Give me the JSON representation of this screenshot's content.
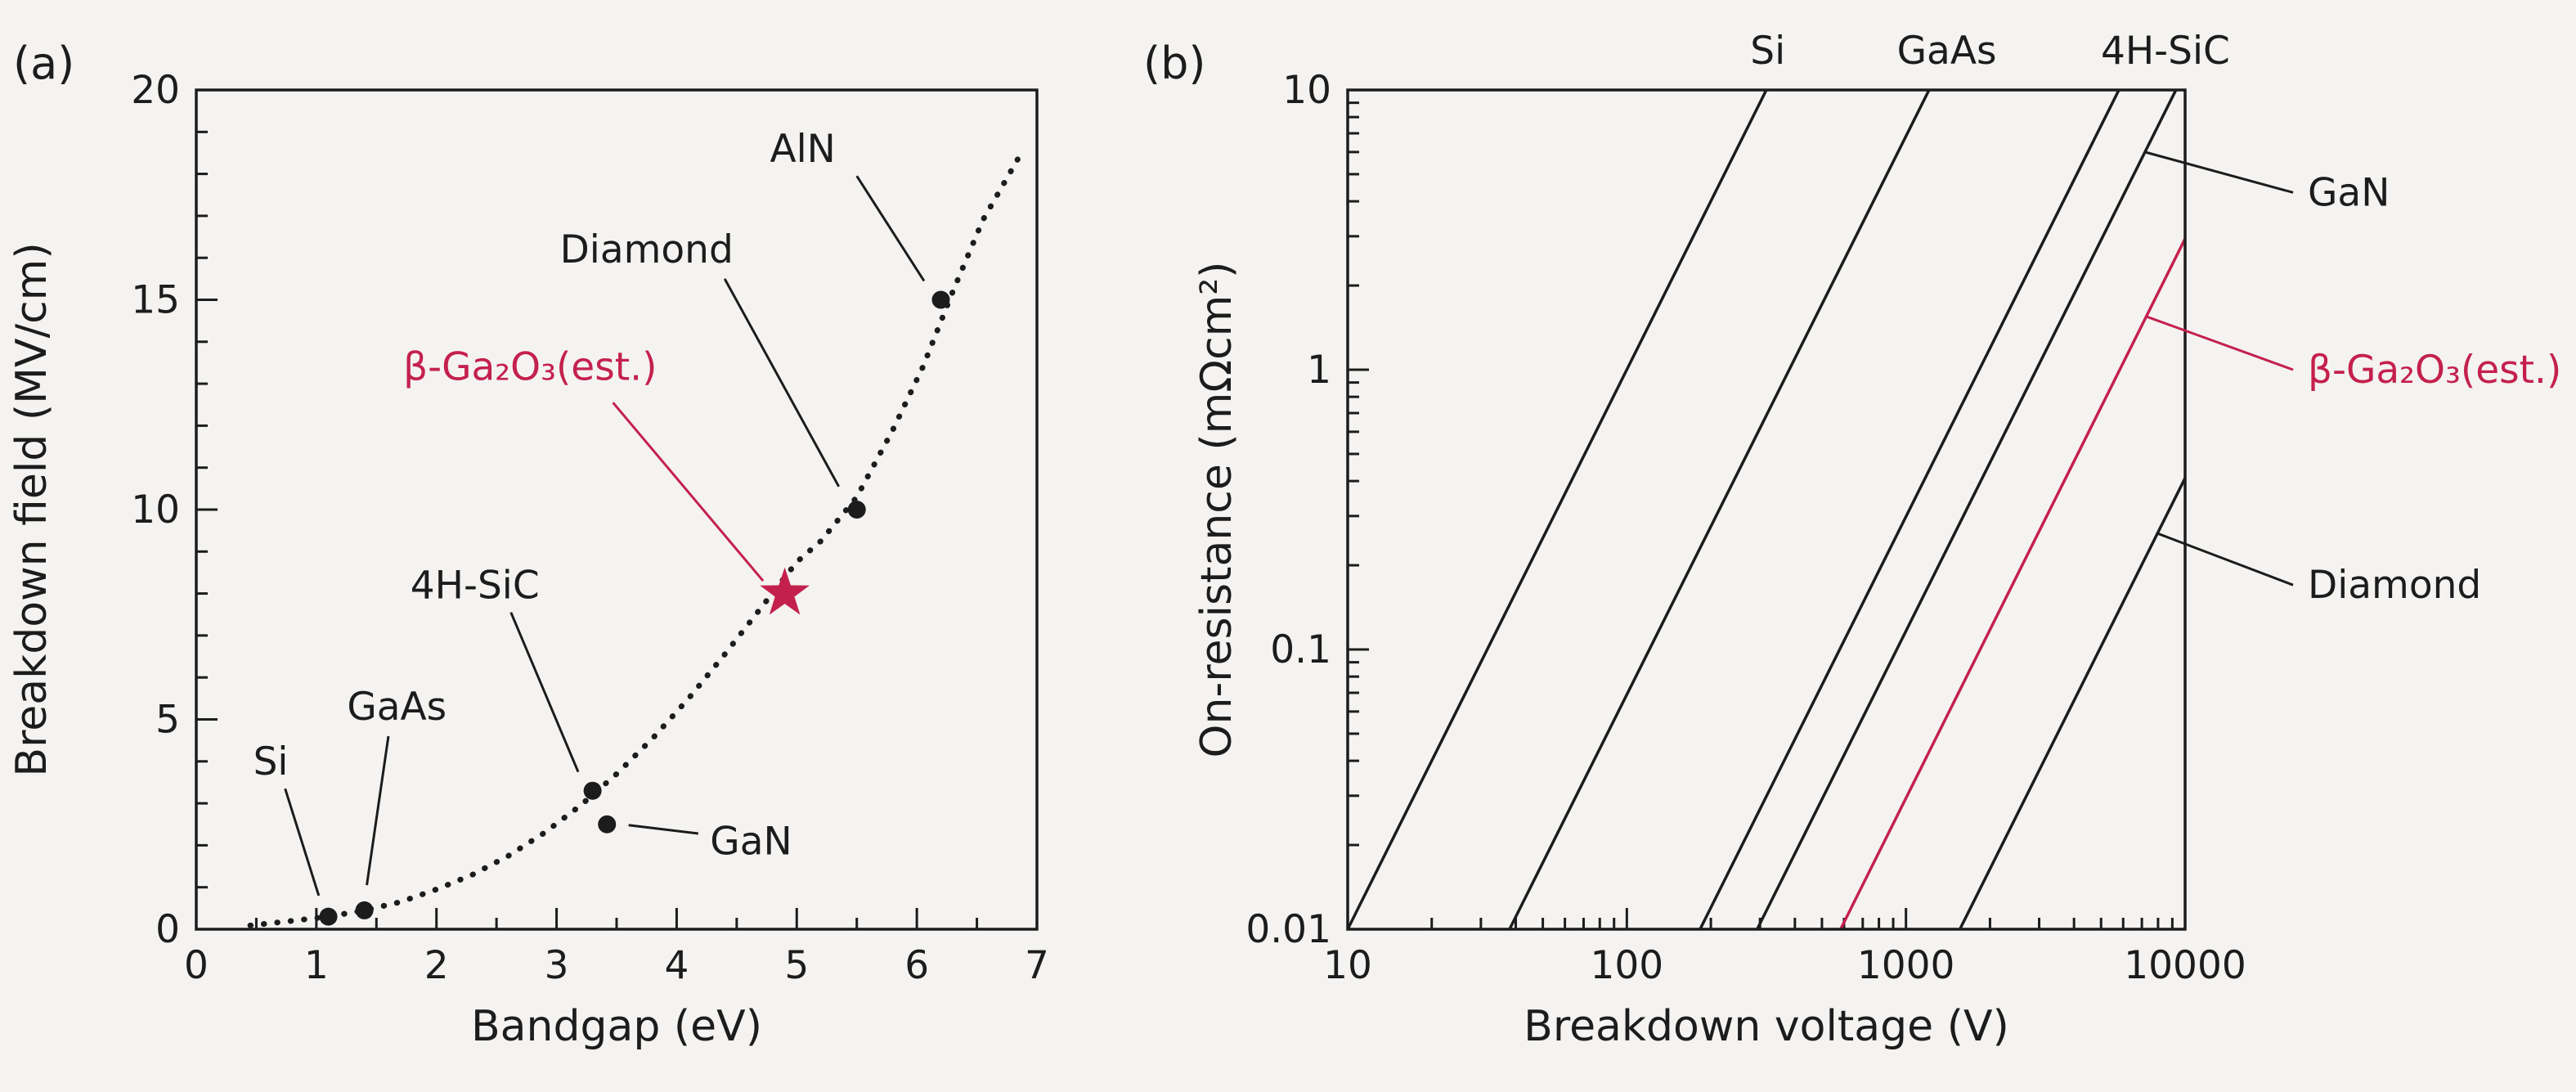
{
  "figure": {
    "background": "#f4f3f1",
    "ink": "#1c1c1c",
    "accent_red": "#c4204e"
  },
  "chart_data": [
    {
      "id": "a",
      "type": "scatter",
      "panel_label": "(a)",
      "xlabel": "Bandgap (eV)",
      "ylabel": "Breakdown field (MV/cm)",
      "xlim": [
        0,
        7
      ],
      "ylim": [
        0,
        20
      ],
      "xticks": [
        0,
        1,
        2,
        3,
        4,
        5,
        6,
        7
      ],
      "yticks": [
        0,
        5,
        10,
        15,
        20
      ],
      "x_minor_step": 0.5,
      "y_minor_step": 1,
      "grid": false,
      "points": [
        {
          "label": "Si",
          "x": 1.1,
          "y": 0.3,
          "marker": "dot",
          "color": "ink",
          "label_pos": [
            0.62,
            4.0
          ],
          "leader": [
            [
              0.74,
              3.35
            ],
            [
              1.02,
              0.8
            ]
          ]
        },
        {
          "label": "GaAs",
          "x": 1.4,
          "y": 0.45,
          "marker": "dot",
          "color": "ink",
          "label_pos": [
            1.67,
            5.3
          ],
          "leader": [
            [
              1.6,
              4.6
            ],
            [
              1.42,
              1.05
            ]
          ]
        },
        {
          "label": "4H-SiC",
          "x": 3.3,
          "y": 3.3,
          "marker": "dot",
          "color": "ink",
          "label_pos": [
            2.32,
            8.2
          ],
          "leader": [
            [
              2.62,
              7.55
            ],
            [
              3.18,
              3.75
            ]
          ]
        },
        {
          "label": "GaN",
          "x": 3.42,
          "y": 2.5,
          "marker": "dot",
          "color": "ink",
          "label_pos": [
            4.62,
            2.1
          ],
          "leader": [
            [
              4.18,
              2.28
            ],
            [
              3.6,
              2.48
            ]
          ]
        },
        {
          "label": "β-Ga₂O₃(est.)",
          "x": 4.9,
          "y": 8,
          "marker": "star",
          "color": "red",
          "label_pos": [
            2.78,
            13.4
          ],
          "leader": [
            [
              3.47,
              12.55
            ],
            [
              4.72,
              8.3
            ]
          ]
        },
        {
          "label": "Diamond",
          "x": 5.5,
          "y": 10,
          "marker": "dot",
          "color": "ink",
          "label_pos": [
            3.75,
            16.2
          ],
          "leader": [
            [
              4.4,
              15.5
            ],
            [
              5.35,
              10.55
            ]
          ]
        },
        {
          "label": "AlN",
          "x": 6.2,
          "y": 15,
          "marker": "dot",
          "color": "ink",
          "label_pos": [
            5.05,
            18.6
          ],
          "leader": [
            [
              5.5,
              17.95
            ],
            [
              6.06,
              15.45
            ]
          ]
        }
      ],
      "fit_curve": {
        "style": "dotted",
        "points": [
          [
            0.45,
            0.09
          ],
          [
            0.8,
            0.2
          ],
          [
            1.1,
            0.3
          ],
          [
            1.4,
            0.45
          ],
          [
            1.7,
            0.65
          ],
          [
            2.0,
            0.95
          ],
          [
            2.3,
            1.3
          ],
          [
            2.6,
            1.75
          ],
          [
            2.9,
            2.3
          ],
          [
            3.2,
            2.95
          ],
          [
            3.5,
            3.7
          ],
          [
            3.8,
            4.55
          ],
          [
            4.1,
            5.5
          ],
          [
            4.4,
            6.55
          ],
          [
            4.7,
            7.65
          ],
          [
            5.0,
            8.75
          ],
          [
            5.2,
            9.25
          ],
          [
            5.5,
            10.3
          ],
          [
            5.8,
            11.9
          ],
          [
            6.05,
            13.4
          ],
          [
            6.3,
            15.2
          ],
          [
            6.55,
            16.9
          ],
          [
            6.85,
            18.4
          ]
        ]
      }
    },
    {
      "id": "b",
      "type": "line",
      "panel_label": "(b)",
      "xlabel": "Breakdown voltage (V)",
      "ylabel": "On-resistance (mΩcm²)",
      "xscale": "log",
      "yscale": "log",
      "xlim": [
        10,
        10000
      ],
      "ylim": [
        0.01,
        10
      ],
      "xticks": [
        10,
        100,
        1000,
        10000
      ],
      "yticks": [
        0.01,
        0.1,
        1,
        10
      ],
      "grid": false,
      "series": [
        {
          "name": "Si",
          "color": "ink",
          "points": [
            [
              10,
              0.01
            ],
            [
              316,
              10
            ]
          ]
        },
        {
          "name": "GaAs",
          "color": "ink",
          "points": [
            [
              38,
              0.01
            ],
            [
              1210,
              10
            ]
          ]
        },
        {
          "name": "4H-SiC",
          "color": "ink",
          "points": [
            [
              183,
              0.01
            ],
            [
              5790,
              10
            ]
          ]
        },
        {
          "name": "GaN",
          "color": "ink",
          "points": [
            [
              293,
              0.01
            ],
            [
              9270,
              10
            ]
          ]
        },
        {
          "name": "β-Ga₂O₃(est.)",
          "color": "red",
          "points": [
            [
              583,
              0.01
            ],
            [
              10000,
              2.94
            ]
          ]
        },
        {
          "name": "Diamond",
          "color": "ink",
          "points": [
            [
              1560,
              0.01
            ],
            [
              10000,
              0.41
            ]
          ]
        }
      ],
      "top_labels": [
        {
          "text": "Si",
          "x": 320
        },
        {
          "text": "GaAs",
          "x": 1400
        },
        {
          "text": "4H-SiC",
          "x": 8500
        }
      ],
      "right_labels": [
        {
          "text": "GaN",
          "y": 4.3,
          "color": "ink",
          "target": [
            7179,
            6.0
          ]
        },
        {
          "text": "β-Ga₂O₃(est.)",
          "y": 1.0,
          "color": "red",
          "target": [
            7257,
            1.55
          ]
        },
        {
          "text": "Diamond",
          "y": 0.17,
          "color": "ink",
          "target": [
            7957,
            0.26
          ]
        }
      ]
    }
  ]
}
